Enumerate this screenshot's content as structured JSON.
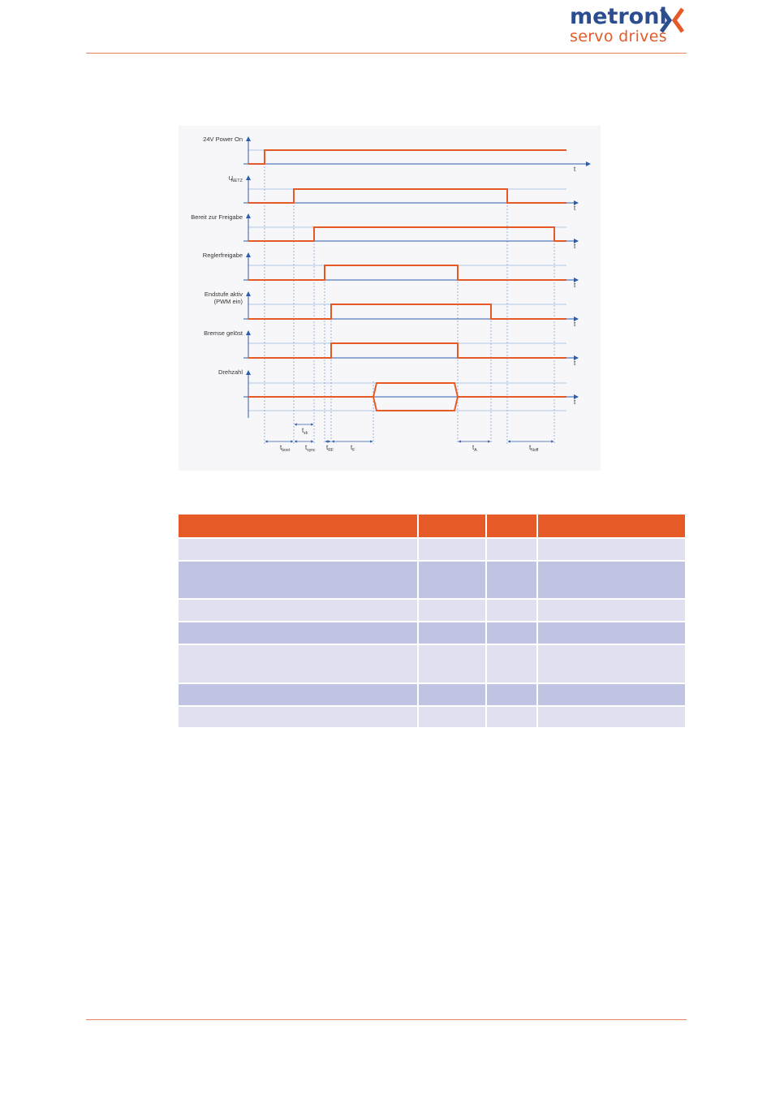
{
  "header": {
    "logo_primary": "metroni",
    "logo_secondary": "servo drives",
    "logo_accent_color": "#e55a27",
    "logo_primary_color": "#2c4d8f"
  },
  "diagram": {
    "signal_color": "#e55a27",
    "axis_color": "#2c5ea8",
    "axis_label": "t",
    "signals": [
      {
        "label": "24V Power On"
      },
      {
        "label": "U",
        "subscript": "NETZ"
      },
      {
        "label": "Bereit zur Freigabe"
      },
      {
        "label": "Reglerfreigabe"
      },
      {
        "label": "Endstufe aktiv",
        "label_line2": "(PWM ein)"
      },
      {
        "label": "Bremse gelöst"
      },
      {
        "label": "Drehzahl"
      }
    ],
    "time_labels": [
      {
        "main": "t",
        "sub": "boot"
      },
      {
        "main": "t",
        "sub": "sync"
      },
      {
        "main": "t",
        "sub": "zk"
      },
      {
        "main": "t",
        "sub": "RF"
      },
      {
        "main": "t",
        "sub": "F"
      },
      {
        "main": "t",
        "sub": "A"
      },
      {
        "main": "t",
        "sub": "Noff"
      }
    ]
  },
  "table": {
    "header_color": "#e55a27",
    "rows": [
      {
        "style": "light",
        "height": 28
      },
      {
        "style": "dark",
        "height": 47
      },
      {
        "style": "light",
        "height": 28
      },
      {
        "style": "dark",
        "height": 28
      },
      {
        "style": "light",
        "height": 48
      },
      {
        "style": "dark",
        "height": 28
      },
      {
        "style": "light",
        "height": 27
      }
    ]
  }
}
